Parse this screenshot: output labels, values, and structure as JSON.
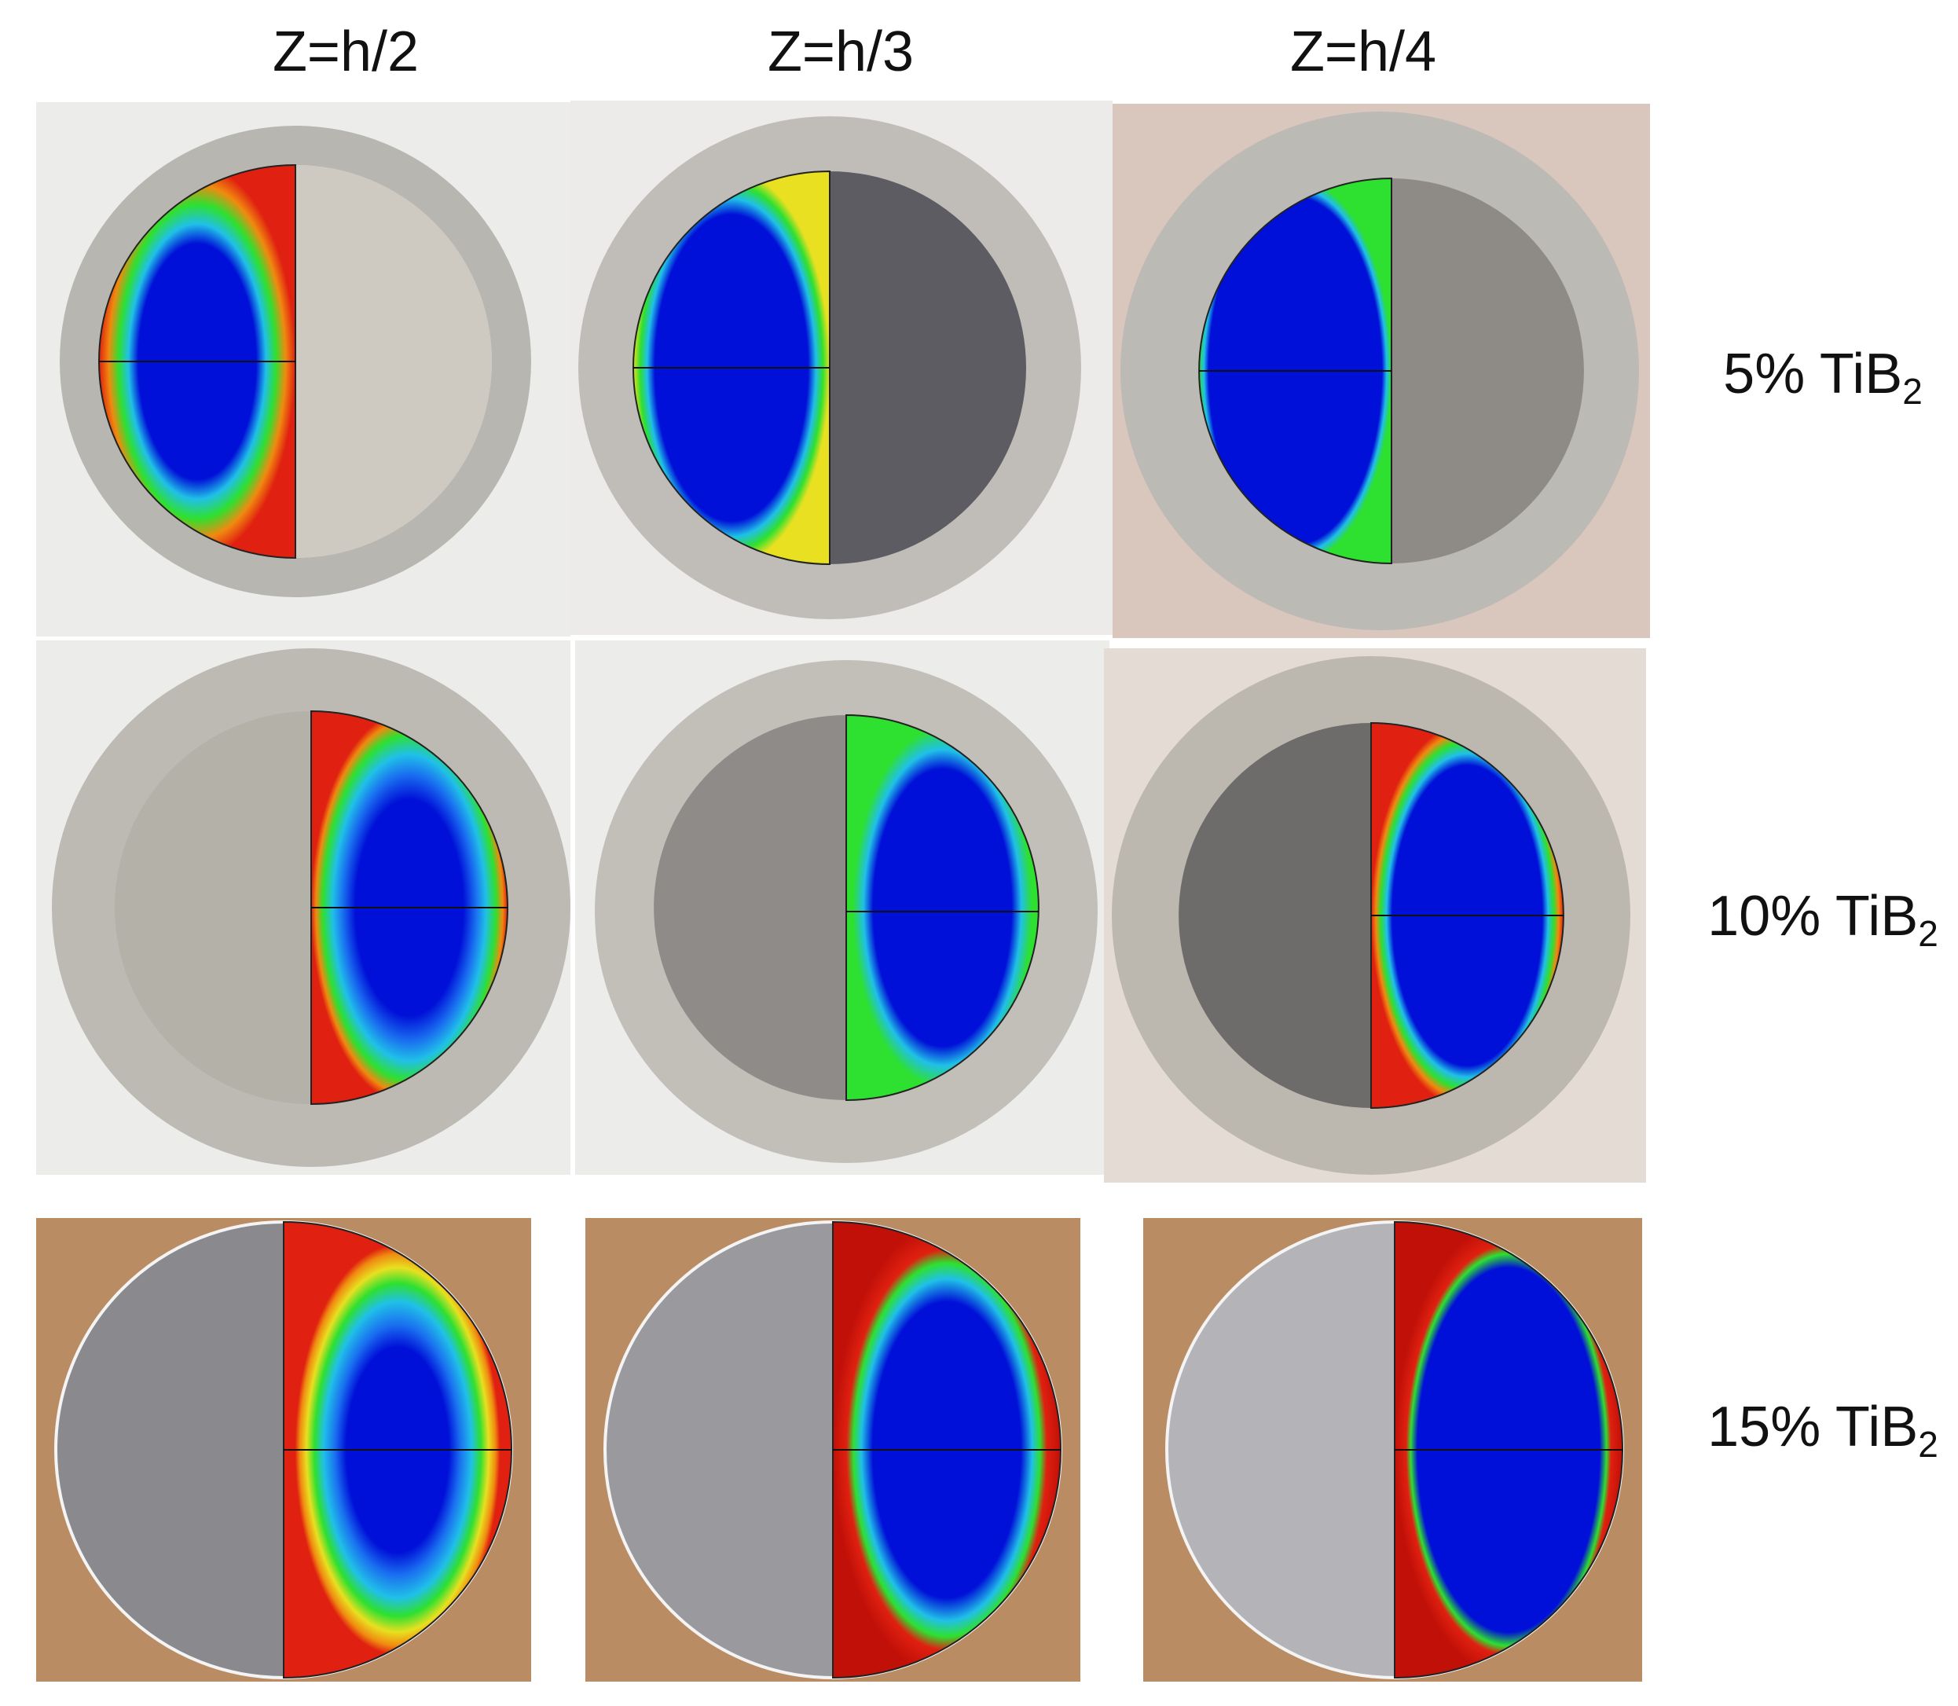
{
  "columns": [
    "Z=h/2",
    "Z=h/3",
    "Z=h/4"
  ],
  "rows": [
    {
      "label": "5% TiB",
      "sub": "2"
    },
    {
      "label": "10% TiB",
      "sub": "2"
    },
    {
      "label": "15% TiB",
      "sub": "2"
    }
  ],
  "colors": {
    "sim_red": "#e02010",
    "sim_orange": "#f08a10",
    "sim_yellow": "#e8e020",
    "sim_green": "#2ee030",
    "sim_cyan": "#20c0e8",
    "sim_lightblue": "#1a70f0",
    "sim_blue": "#0010d8",
    "ring_grey": "#b8b6b0",
    "tan_bg": "#b98c64"
  }
}
